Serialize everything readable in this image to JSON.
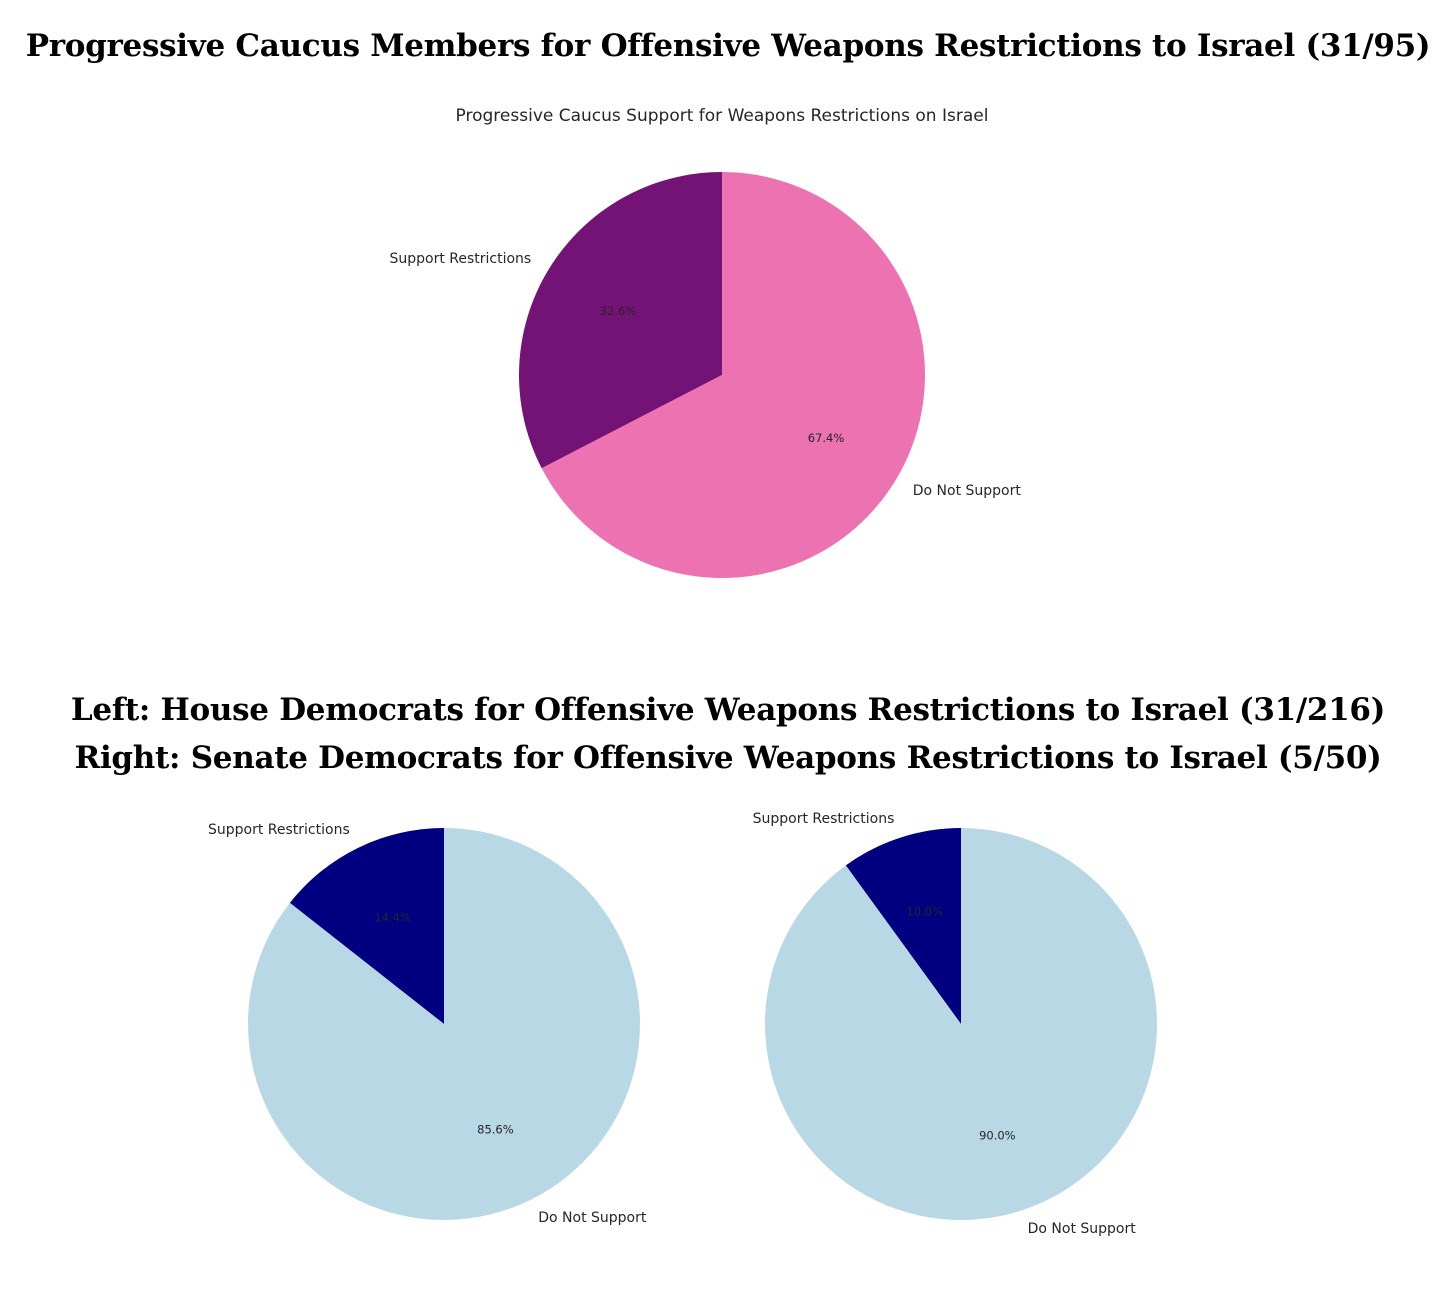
{
  "headings": {
    "top": "Progressive Caucus Members for Offensive Weapons Restrictions to Israel (31/95)",
    "bottom_line1": "Left: House Democrats for Offensive Weapons Restrictions to Israel (31/216)",
    "bottom_line2": "Right: Senate Democrats for Offensive Weapons Restrictions to Israel (5/50)"
  },
  "chart_data": [
    {
      "type": "pie",
      "title": "Progressive Caucus Support for Weapons Restrictions on Israel",
      "labels": [
        "Support Restrictions",
        "Do Not Support"
      ],
      "values": [
        32.6,
        67.4
      ],
      "value_labels": [
        "32.6%",
        "67.4%"
      ],
      "colors": [
        "#741376",
        "#ED72B1"
      ],
      "start_angle_deg": 90,
      "direction": "counterclockwise"
    },
    {
      "type": "pie",
      "labels": [
        "Support Restrictions",
        "Do Not Support"
      ],
      "values": [
        14.4,
        85.6
      ],
      "value_labels": [
        "14.4%",
        "85.6%"
      ],
      "colors": [
        "#000080",
        "#B7D8E4"
      ],
      "start_angle_deg": 90,
      "direction": "counterclockwise"
    },
    {
      "type": "pie",
      "labels": [
        "Support Restrictions",
        "Do Not Support"
      ],
      "values": [
        10.0,
        90.0
      ],
      "value_labels": [
        "10.0%",
        "90.0%"
      ],
      "colors": [
        "#000080",
        "#B7D8E4"
      ],
      "start_angle_deg": 90,
      "direction": "counterclockwise"
    }
  ]
}
